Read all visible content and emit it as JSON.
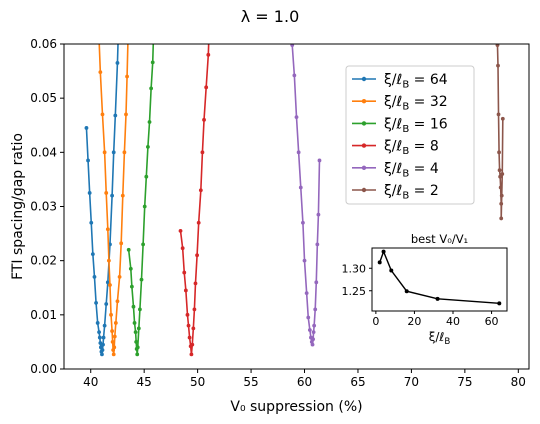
{
  "chart_data": [
    {
      "type": "line",
      "title": "λ = 1.0",
      "xlabel": "V₀ suppression (%)",
      "ylabel": "FTI spacing/gap ratio",
      "xlim": [
        37.5,
        81.0
      ],
      "ylim": [
        0.0,
        0.06
      ],
      "xticks": [
        40,
        45,
        50,
        55,
        60,
        65,
        70,
        75,
        80
      ],
      "xtick_labels": [
        "40",
        "45",
        "50",
        "55",
        "60",
        "65",
        "70",
        "75",
        "80"
      ],
      "yticks": [
        0.0,
        0.01,
        0.02,
        0.03,
        0.04,
        0.05,
        0.06
      ],
      "ytick_labels": [
        "0.00",
        "0.01",
        "0.02",
        "0.03",
        "0.04",
        "0.05",
        "0.06"
      ],
      "grid": false,
      "legend_position": "upper-right",
      "legend_entries": [
        "ξ/ℓ_B = 64",
        "ξ/ℓ_B = 32",
        "ξ/ℓ_B = 16",
        "ξ/ℓ_B = 8",
        "ξ/ℓ_B = 4",
        "ξ/ℓ_B = 2"
      ],
      "series": [
        {
          "name": "ξ/ℓ_B = 64",
          "color": "#1f77b4",
          "points": [
            [
              39.6,
              0.0445
            ],
            [
              39.75,
              0.0385
            ],
            [
              39.9,
              0.0325
            ],
            [
              40.05,
              0.027
            ],
            [
              40.2,
              0.0212
            ],
            [
              40.35,
              0.017
            ],
            [
              40.5,
              0.0122
            ],
            [
              40.65,
              0.0085
            ],
            [
              40.78,
              0.0068
            ],
            [
              40.85,
              0.0058
            ],
            [
              40.9,
              0.0048
            ],
            [
              40.95,
              0.004
            ],
            [
              41.0,
              0.0032
            ],
            [
              41.05,
              0.0027
            ],
            [
              41.1,
              0.0035
            ],
            [
              41.15,
              0.0045
            ],
            [
              41.2,
              0.0058
            ],
            [
              41.3,
              0.008
            ],
            [
              41.45,
              0.012
            ],
            [
              41.6,
              0.016
            ],
            [
              41.8,
              0.023
            ],
            [
              42.0,
              0.032
            ],
            [
              42.15,
              0.04
            ],
            [
              42.3,
              0.0468
            ],
            [
              42.5,
              0.0565
            ],
            [
              42.7,
              0.07
            ]
          ]
        },
        {
          "name": "ξ/ℓ_B = 32",
          "color": "#ff7f0e",
          "points": [
            [
              40.6,
              0.07
            ],
            [
              40.9,
              0.0548
            ],
            [
              41.1,
              0.047
            ],
            [
              41.3,
              0.04
            ],
            [
              41.45,
              0.0325
            ],
            [
              41.6,
              0.0258
            ],
            [
              41.7,
              0.02
            ],
            [
              41.8,
              0.0155
            ],
            [
              41.9,
              0.01
            ],
            [
              42.0,
              0.007
            ],
            [
              42.05,
              0.005
            ],
            [
              42.1,
              0.0035
            ],
            [
              42.15,
              0.0027
            ],
            [
              42.2,
              0.004
            ],
            [
              42.25,
              0.006
            ],
            [
              42.35,
              0.0085
            ],
            [
              42.5,
              0.0125
            ],
            [
              42.7,
              0.017
            ],
            [
              42.85,
              0.0232
            ],
            [
              43.0,
              0.032
            ],
            [
              43.15,
              0.04
            ],
            [
              43.3,
              0.047
            ],
            [
              43.4,
              0.054
            ],
            [
              43.6,
              0.07
            ]
          ]
        },
        {
          "name": "ξ/ℓ_B = 16",
          "color": "#2ca02c",
          "points": [
            [
              43.55,
              0.022
            ],
            [
              43.75,
              0.0185
            ],
            [
              43.85,
              0.0152
            ],
            [
              44.0,
              0.0115
            ],
            [
              44.1,
              0.0085
            ],
            [
              44.2,
              0.0068
            ],
            [
              44.25,
              0.005
            ],
            [
              44.3,
              0.0037
            ],
            [
              44.35,
              0.0027
            ],
            [
              44.4,
              0.004
            ],
            [
              44.5,
              0.0075
            ],
            [
              44.6,
              0.011
            ],
            [
              44.75,
              0.0165
            ],
            [
              44.9,
              0.023
            ],
            [
              45.05,
              0.03
            ],
            [
              45.2,
              0.0355
            ],
            [
              45.35,
              0.041
            ],
            [
              45.5,
              0.0456
            ],
            [
              45.65,
              0.0518
            ],
            [
              45.8,
              0.0566
            ],
            [
              46.0,
              0.07
            ]
          ]
        },
        {
          "name": "ξ/ℓ_B = 8",
          "color": "#d62728",
          "points": [
            [
              48.4,
              0.0255
            ],
            [
              48.6,
              0.0223
            ],
            [
              48.75,
              0.0178
            ],
            [
              48.9,
              0.0145
            ],
            [
              49.05,
              0.01
            ],
            [
              49.15,
              0.008
            ],
            [
              49.25,
              0.0058
            ],
            [
              49.35,
              0.0042
            ],
            [
              49.42,
              0.0027
            ],
            [
              49.5,
              0.0045
            ],
            [
              49.6,
              0.0075
            ],
            [
              49.7,
              0.011
            ],
            [
              49.8,
              0.0158
            ],
            [
              49.95,
              0.021
            ],
            [
              50.1,
              0.027
            ],
            [
              50.3,
              0.033
            ],
            [
              50.45,
              0.04
            ],
            [
              50.6,
              0.046
            ],
            [
              50.8,
              0.052
            ],
            [
              51.0,
              0.058
            ],
            [
              51.2,
              0.07
            ]
          ]
        },
        {
          "name": "ξ/ℓ_B = 4",
          "color": "#9467bd",
          "points": [
            [
              58.85,
              0.0598
            ],
            [
              59.05,
              0.0542
            ],
            [
              59.25,
              0.0465
            ],
            [
              59.45,
              0.04
            ],
            [
              59.65,
              0.0335
            ],
            [
              59.85,
              0.027
            ],
            [
              60.0,
              0.02
            ],
            [
              60.2,
              0.014
            ],
            [
              60.35,
              0.0095
            ],
            [
              60.5,
              0.0072
            ],
            [
              60.6,
              0.0058
            ],
            [
              60.68,
              0.005
            ],
            [
              60.75,
              0.0045
            ],
            [
              60.8,
              0.0055
            ],
            [
              60.85,
              0.0068
            ],
            [
              60.9,
              0.008
            ],
            [
              61.0,
              0.011
            ],
            [
              61.1,
              0.016
            ],
            [
              61.2,
              0.023
            ],
            [
              61.3,
              0.0285
            ],
            [
              61.4,
              0.0385
            ]
          ]
        },
        {
          "name": "ξ/ℓ_B = 2",
          "color": "#8c564b",
          "points": [
            [
              78.05,
              0.0598
            ],
            [
              78.1,
              0.056
            ],
            [
              78.15,
              0.047
            ],
            [
              78.2,
              0.04
            ],
            [
              78.25,
              0.0367
            ],
            [
              78.3,
              0.0355
            ],
            [
              78.35,
              0.0335
            ],
            [
              78.4,
              0.0305
            ],
            [
              78.4,
              0.0278
            ],
            [
              78.45,
              0.032
            ],
            [
              78.5,
              0.036
            ],
            [
              78.55,
              0.0462
            ]
          ]
        }
      ]
    },
    {
      "type": "line",
      "title": "best V₀/V₁",
      "xlabel": "ξ/ℓ_B",
      "ylabel": "",
      "xlim": [
        -2.0,
        68.0
      ],
      "ylim": [
        1.205,
        1.345
      ],
      "xticks": [
        0,
        20,
        40,
        60
      ],
      "xtick_labels": [
        "0",
        "20",
        "40",
        "60"
      ],
      "yticks": [
        1.25,
        1.3
      ],
      "ytick_labels": [
        "1.25",
        "1.30"
      ],
      "grid": false,
      "series": [
        {
          "color": "#000000",
          "points": [
            [
              2,
              1.313
            ],
            [
              4,
              1.337
            ],
            [
              8,
              1.295
            ],
            [
              16,
              1.249
            ],
            [
              32,
              1.232
            ],
            [
              64,
              1.222
            ]
          ]
        }
      ]
    }
  ]
}
